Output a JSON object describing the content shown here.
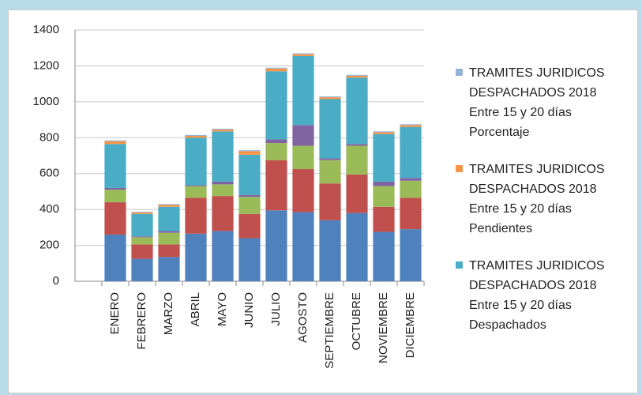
{
  "chart_data": {
    "type": "bar",
    "stacked": true,
    "categories": [
      null,
      "ENERO",
      "FEBRERO",
      "MARZO",
      "ABRIL",
      "MAYO",
      "JUNIO",
      "JULIO",
      "AGOSTO",
      "SEPTIEMBRE",
      "OCTUBRE",
      "NOVIEMBRE",
      "DICIEMBRE"
    ],
    "series": [
      {
        "color": "#4f81bd",
        "values": [
          null,
          260,
          125,
          135,
          265,
          280,
          240,
          395,
          385,
          340,
          380,
          275,
          290
        ]
      },
      {
        "color": "#c0504d",
        "values": [
          null,
          180,
          80,
          70,
          200,
          195,
          135,
          280,
          240,
          205,
          215,
          140,
          175
        ]
      },
      {
        "color": "#9bbb59",
        "values": [
          null,
          70,
          40,
          65,
          65,
          65,
          95,
          95,
          130,
          130,
          160,
          115,
          95
        ]
      },
      {
        "color": "#8064a2",
        "values": [
          null,
          10,
          5,
          10,
          5,
          15,
          10,
          20,
          115,
          10,
          10,
          25,
          15
        ]
      },
      {
        "name": "TRAMITES JURIDICOS DESPACHADOS 2018 Entre 15 y 20 días Despachados",
        "color": "#4bacc6",
        "values": [
          null,
          245,
          125,
          135,
          265,
          280,
          225,
          380,
          385,
          330,
          370,
          265,
          285
        ]
      },
      {
        "name": "TRAMITES JURIDICOS DESPACHADOS 2018 Entre 15 y 20 días Pendientes",
        "color": "#f79646",
        "values": [
          null,
          15,
          8,
          10,
          10,
          10,
          20,
          15,
          10,
          10,
          10,
          10,
          10
        ]
      },
      {
        "name": "TRAMITES JURIDICOS DESPACHADOS 2018 Entre 15 y 20 días Porcentaje",
        "color": "#95b3d7",
        "values": [
          null,
          5,
          4,
          5,
          5,
          5,
          5,
          5,
          5,
          5,
          5,
          5,
          5
        ]
      }
    ],
    "ylim": [
      0,
      1400
    ],
    "yticks": [
      0,
      200,
      400,
      600,
      800,
      1000,
      1200,
      1400
    ],
    "grid": true,
    "legend": "right"
  }
}
